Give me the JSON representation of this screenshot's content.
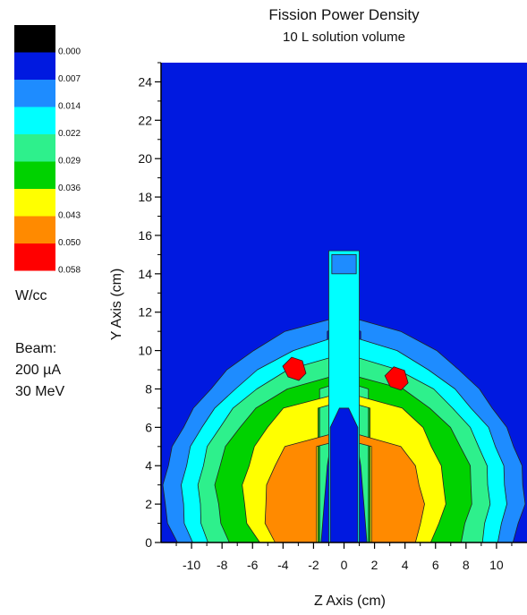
{
  "chart_data": {
    "type": "contour",
    "title": "Fission Power Density",
    "subtitle": "10 L solution volume",
    "xlabel": "Z Axis (cm)",
    "ylabel": "Y Axis (cm)",
    "xlim": [
      -12,
      12
    ],
    "ylim": [
      0,
      25
    ],
    "xticks": [
      -10,
      -8,
      -6,
      -4,
      -2,
      0,
      2,
      4,
      6,
      8,
      10
    ],
    "yticks": [
      0,
      2,
      4,
      6,
      8,
      10,
      12,
      14,
      16,
      18,
      20,
      22,
      24
    ],
    "grid": false,
    "colorbar": {
      "position": "left",
      "units": "W/cc",
      "levels": [
        "0.000",
        "0.007",
        "0.014",
        "0.022",
        "0.029",
        "0.036",
        "0.043",
        "0.050",
        "0.058"
      ],
      "colors": [
        "#000000",
        "#0019e0",
        "#1e8cff",
        "#00ffff",
        "#2ef08c",
        "#00d200",
        "#ffff00",
        "#ff8a00",
        "#ff0000"
      ]
    },
    "contour_levels": [
      {
        "value": 0.007,
        "color": "#1e8cff",
        "hw": [
          11.0,
          11.5,
          11.8,
          11.8,
          11.6,
          11.2,
          10.6,
          9.8,
          8.8,
          7.6,
          6.0,
          3.8
        ],
        "hb": [
          2.3,
          2.2,
          2.0,
          1.7,
          1.4,
          1.2,
          1.1,
          1.1,
          1.1,
          1.1,
          1.1,
          1.1
        ]
      },
      {
        "value": 0.014,
        "color": "#00ffff",
        "hw": [
          10.0,
          10.4,
          10.6,
          10.6,
          10.4,
          10.0,
          9.4,
          8.4,
          7.2,
          5.6,
          3.4
        ],
        "hb": [
          1.9,
          1.8,
          1.7,
          1.4,
          1.2,
          1.0,
          0.9,
          0.9,
          0.9,
          0.9,
          0.9
        ]
      },
      {
        "value": 0.022,
        "color": "#2ef08c",
        "hw": [
          9.0,
          9.3,
          9.5,
          9.5,
          9.3,
          8.9,
          8.2,
          7.2,
          5.8,
          3.6
        ],
        "hb": [
          1.5,
          1.4,
          1.3,
          1.2,
          1.1,
          0.9,
          0.9,
          0.9,
          0.9,
          0.9
        ]
      },
      {
        "value": 0.029,
        "color": "#00d200",
        "hw": [
          7.6,
          8.0,
          8.3,
          8.4,
          8.2,
          7.7,
          6.9,
          5.7,
          3.8
        ],
        "hb": [
          1.6,
          1.6,
          1.6,
          1.6,
          1.6,
          1.6,
          1.6,
          1.6,
          1.6
        ]
      },
      {
        "value": 0.036,
        "color": "#ffff00",
        "hw": [
          5.6,
          6.3,
          6.6,
          6.6,
          6.3,
          5.8,
          5.1,
          3.9
        ],
        "hb": [
          1.7,
          1.7,
          1.7,
          1.7,
          1.7,
          1.7,
          1.7,
          1.7
        ]
      },
      {
        "value": 0.043,
        "color": "#ff8a00",
        "hw": [
          4.6,
          5.1,
          5.2,
          5.0,
          4.6,
          3.8
        ],
        "hb": [
          1.8,
          1.8,
          1.8,
          1.8,
          1.8,
          1.8
        ]
      }
    ],
    "peaks": [
      {
        "z": -3.2,
        "y": 9.0,
        "value": 0.05
      },
      {
        "z": 3.5,
        "y": 8.5,
        "value": 0.05
      }
    ],
    "inner_region": {
      "color": "#1e8cff",
      "y_top": 15.2,
      "half_width": 1.0
    },
    "core_region": {
      "color": "#0019e0",
      "y_top": 7.0,
      "half_width": 0.9
    }
  },
  "side_text": {
    "units": "W/cc",
    "beam_label": "Beam:",
    "beam_current": "200 µA",
    "beam_energy": "30 MeV"
  }
}
